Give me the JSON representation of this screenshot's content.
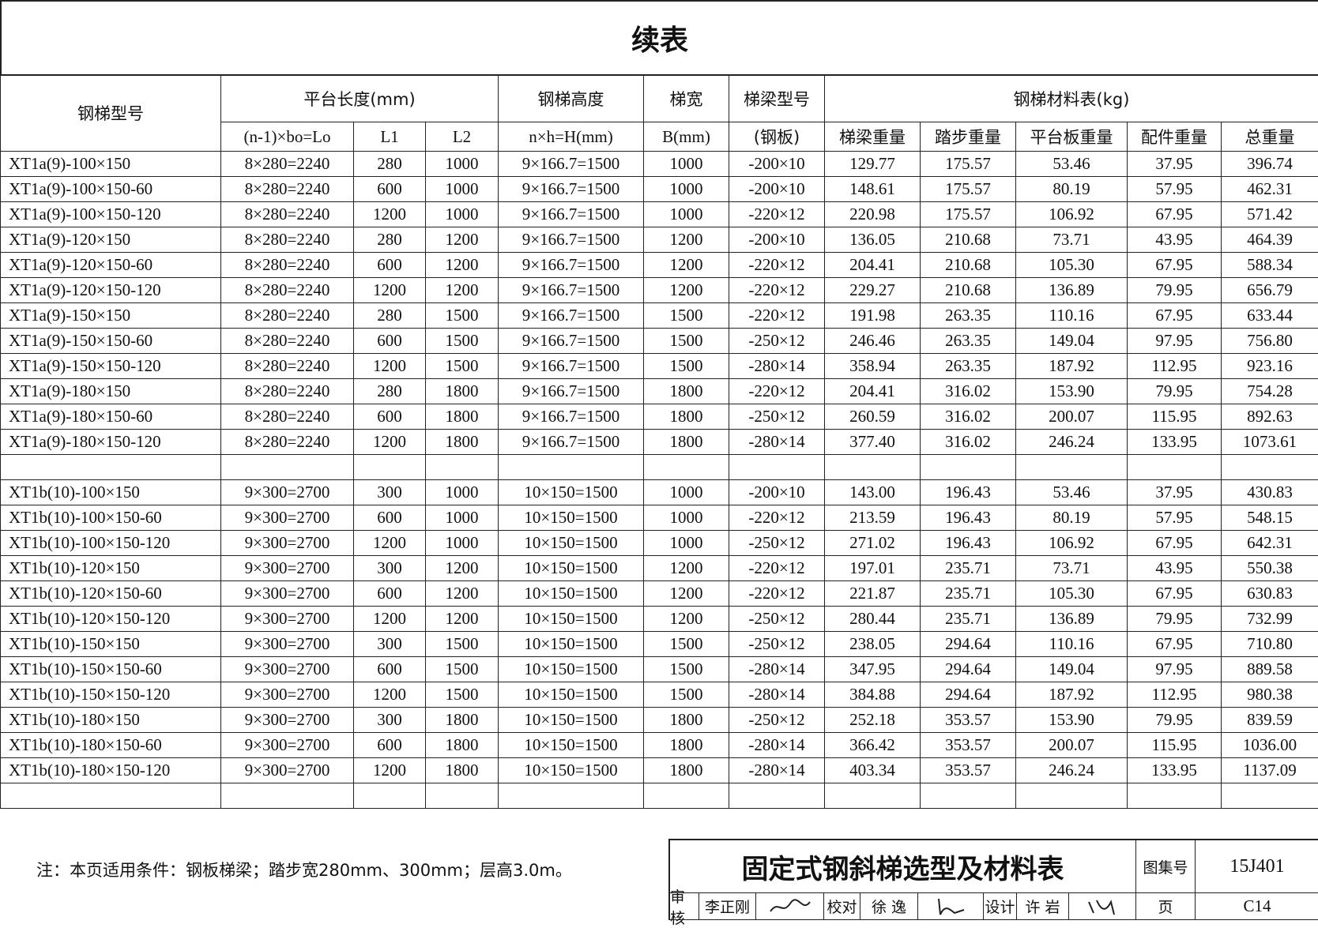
{
  "header": {
    "title": "续表"
  },
  "table": {
    "header_row1": [
      "钢梯型号",
      "平台长度(mm)",
      "钢梯高度",
      "梯宽",
      "梯梁型号",
      "钢梯材料表(kg)"
    ],
    "header_row2": [
      "(n-1)×bo=Lo",
      "L1",
      "L2",
      "n×h=H(mm)",
      "B(mm)",
      "(钢板)",
      "梯梁重量",
      "踏步重量",
      "平台板重量",
      "配件重量",
      "总重量"
    ],
    "groups": [
      {
        "rows": [
          [
            "XT1a(9)-100×150",
            "8×280=2240",
            "280",
            "1000",
            "9×166.7=1500",
            "1000",
            "-200×10",
            "129.77",
            "175.57",
            "53.46",
            "37.95",
            "396.74"
          ],
          [
            "XT1a(9)-100×150-60",
            "8×280=2240",
            "600",
            "1000",
            "9×166.7=1500",
            "1000",
            "-200×10",
            "148.61",
            "175.57",
            "80.19",
            "57.95",
            "462.31"
          ],
          [
            "XT1a(9)-100×150-120",
            "8×280=2240",
            "1200",
            "1000",
            "9×166.7=1500",
            "1000",
            "-220×12",
            "220.98",
            "175.57",
            "106.92",
            "67.95",
            "571.42"
          ],
          [
            "XT1a(9)-120×150",
            "8×280=2240",
            "280",
            "1200",
            "9×166.7=1500",
            "1200",
            "-200×10",
            "136.05",
            "210.68",
            "73.71",
            "43.95",
            "464.39"
          ],
          [
            "XT1a(9)-120×150-60",
            "8×280=2240",
            "600",
            "1200",
            "9×166.7=1500",
            "1200",
            "-220×12",
            "204.41",
            "210.68",
            "105.30",
            "67.95",
            "588.34"
          ],
          [
            "XT1a(9)-120×150-120",
            "8×280=2240",
            "1200",
            "1200",
            "9×166.7=1500",
            "1200",
            "-220×12",
            "229.27",
            "210.68",
            "136.89",
            "79.95",
            "656.79"
          ],
          [
            "XT1a(9)-150×150",
            "8×280=2240",
            "280",
            "1500",
            "9×166.7=1500",
            "1500",
            "-220×12",
            "191.98",
            "263.35",
            "110.16",
            "67.95",
            "633.44"
          ],
          [
            "XT1a(9)-150×150-60",
            "8×280=2240",
            "600",
            "1500",
            "9×166.7=1500",
            "1500",
            "-250×12",
            "246.46",
            "263.35",
            "149.04",
            "97.95",
            "756.80"
          ],
          [
            "XT1a(9)-150×150-120",
            "8×280=2240",
            "1200",
            "1500",
            "9×166.7=1500",
            "1500",
            "-280×14",
            "358.94",
            "263.35",
            "187.92",
            "112.95",
            "923.16"
          ],
          [
            "XT1a(9)-180×150",
            "8×280=2240",
            "280",
            "1800",
            "9×166.7=1500",
            "1800",
            "-220×12",
            "204.41",
            "316.02",
            "153.90",
            "79.95",
            "754.28"
          ],
          [
            "XT1a(9)-180×150-60",
            "8×280=2240",
            "600",
            "1800",
            "9×166.7=1500",
            "1800",
            "-250×12",
            "260.59",
            "316.02",
            "200.07",
            "115.95",
            "892.63"
          ],
          [
            "XT1a(9)-180×150-120",
            "8×280=2240",
            "1200",
            "1800",
            "9×166.7=1500",
            "1800",
            "-280×14",
            "377.40",
            "316.02",
            "246.24",
            "133.95",
            "1073.61"
          ]
        ]
      },
      {
        "rows": [
          [
            "XT1b(10)-100×150",
            "9×300=2700",
            "300",
            "1000",
            "10×150=1500",
            "1000",
            "-200×10",
            "143.00",
            "196.43",
            "53.46",
            "37.95",
            "430.83"
          ],
          [
            "XT1b(10)-100×150-60",
            "9×300=2700",
            "600",
            "1000",
            "10×150=1500",
            "1000",
            "-220×12",
            "213.59",
            "196.43",
            "80.19",
            "57.95",
            "548.15"
          ],
          [
            "XT1b(10)-100×150-120",
            "9×300=2700",
            "1200",
            "1000",
            "10×150=1500",
            "1000",
            "-250×12",
            "271.02",
            "196.43",
            "106.92",
            "67.95",
            "642.31"
          ],
          [
            "XT1b(10)-120×150",
            "9×300=2700",
            "300",
            "1200",
            "10×150=1500",
            "1200",
            "-220×12",
            "197.01",
            "235.71",
            "73.71",
            "43.95",
            "550.38"
          ],
          [
            "XT1b(10)-120×150-60",
            "9×300=2700",
            "600",
            "1200",
            "10×150=1500",
            "1200",
            "-220×12",
            "221.87",
            "235.71",
            "105.30",
            "67.95",
            "630.83"
          ],
          [
            "XT1b(10)-120×150-120",
            "9×300=2700",
            "1200",
            "1200",
            "10×150=1500",
            "1200",
            "-250×12",
            "280.44",
            "235.71",
            "136.89",
            "79.95",
            "732.99"
          ],
          [
            "XT1b(10)-150×150",
            "9×300=2700",
            "300",
            "1500",
            "10×150=1500",
            "1500",
            "-250×12",
            "238.05",
            "294.64",
            "110.16",
            "67.95",
            "710.80"
          ],
          [
            "XT1b(10)-150×150-60",
            "9×300=2700",
            "600",
            "1500",
            "10×150=1500",
            "1500",
            "-280×14",
            "347.95",
            "294.64",
            "149.04",
            "97.95",
            "889.58"
          ],
          [
            "XT1b(10)-150×150-120",
            "9×300=2700",
            "1200",
            "1500",
            "10×150=1500",
            "1500",
            "-280×14",
            "384.88",
            "294.64",
            "187.92",
            "112.95",
            "980.38"
          ],
          [
            "XT1b(10)-180×150",
            "9×300=2700",
            "300",
            "1800",
            "10×150=1500",
            "1800",
            "-250×12",
            "252.18",
            "353.57",
            "153.90",
            "79.95",
            "839.59"
          ],
          [
            "XT1b(10)-180×150-60",
            "9×300=2700",
            "600",
            "1800",
            "10×150=1500",
            "1800",
            "-280×14",
            "366.42",
            "353.57",
            "200.07",
            "115.95",
            "1036.00"
          ],
          [
            "XT1b(10)-180×150-120",
            "9×300=2700",
            "1200",
            "1800",
            "10×150=1500",
            "1800",
            "-280×14",
            "403.34",
            "353.57",
            "246.24",
            "133.95",
            "1137.09"
          ]
        ]
      }
    ]
  },
  "note": "注：本页适用条件：钢板梯梁；踏步宽280mm、300mm；层高3.0m。",
  "title_block": {
    "title": "固定式钢斜梯选型及材料表",
    "atlas_label": "图集号",
    "atlas_no": "15J401",
    "review_label": "审核",
    "reviewer": "李正刚",
    "check_label": "校对",
    "checker": "徐 逸",
    "design_label": "设计",
    "designer": "许 岩",
    "page_label": "页",
    "page_no": "C14"
  }
}
